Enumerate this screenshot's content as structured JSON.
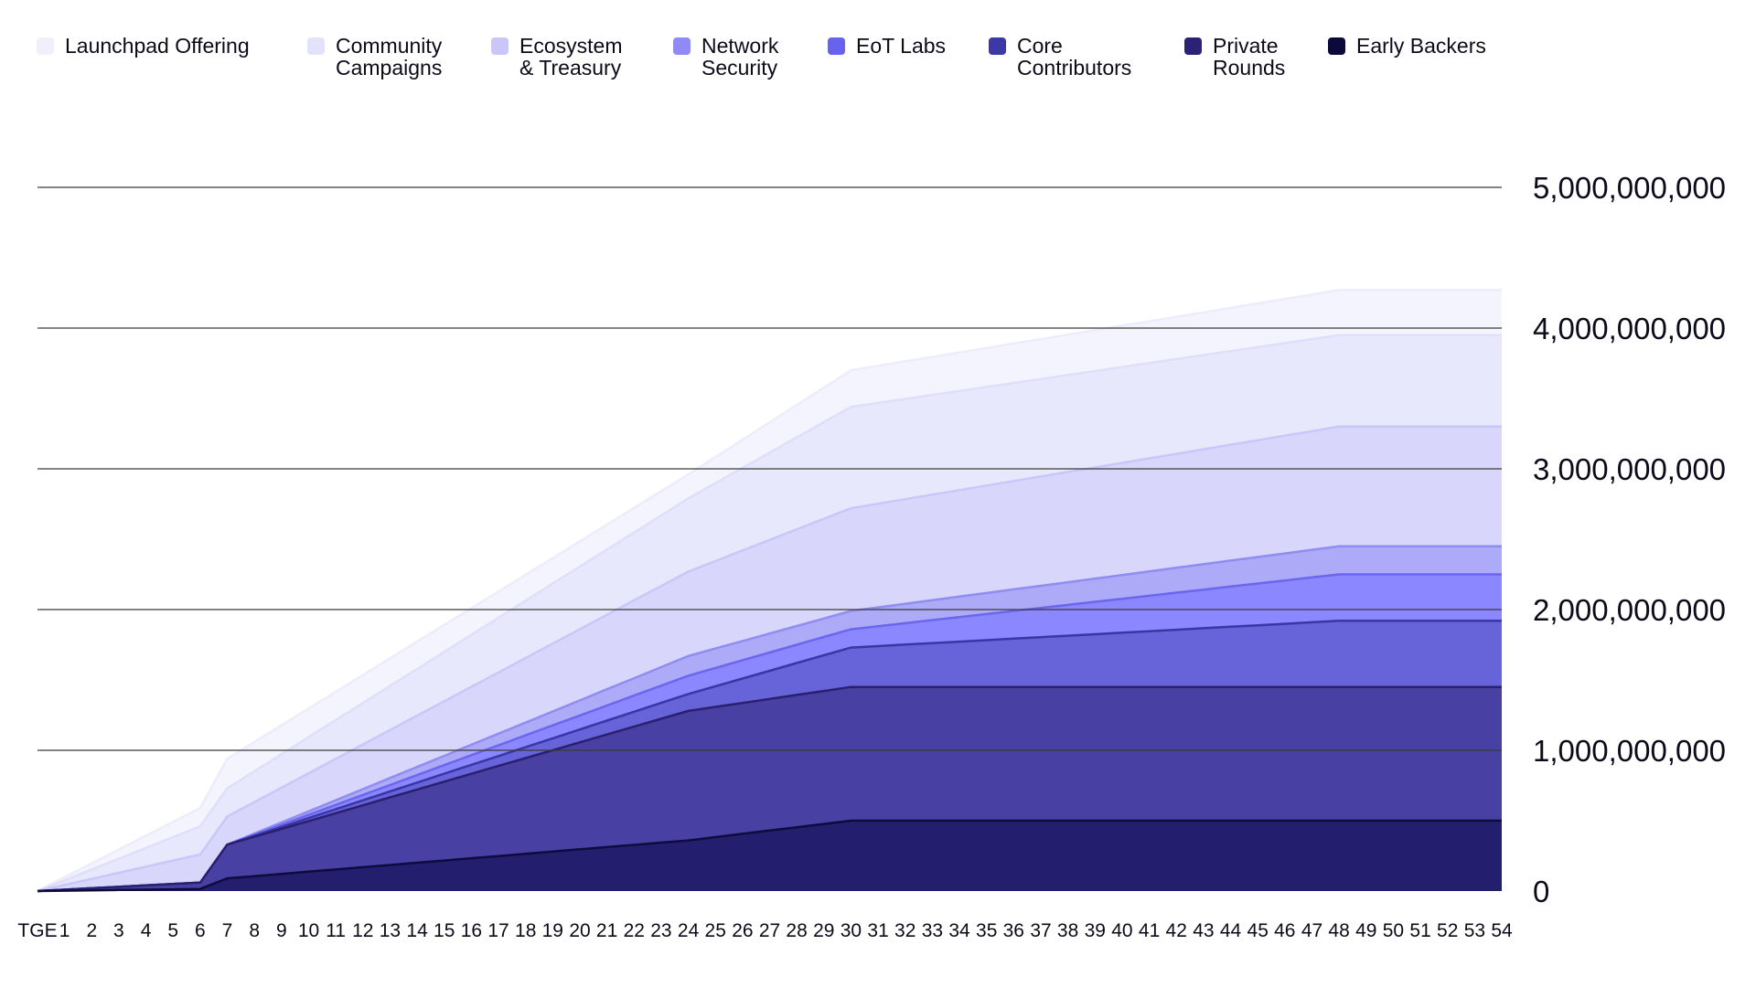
{
  "chart_data": {
    "type": "area",
    "stacked": true,
    "x": [
      "TGE",
      "1",
      "2",
      "3",
      "4",
      "5",
      "6",
      "7",
      "8",
      "9",
      "10",
      "11",
      "12",
      "13",
      "14",
      "15",
      "16",
      "17",
      "18",
      "19",
      "20",
      "21",
      "22",
      "23",
      "24",
      "25",
      "26",
      "27",
      "28",
      "29",
      "30",
      "31",
      "32",
      "33",
      "34",
      "35",
      "36",
      "37",
      "38",
      "39",
      "40",
      "41",
      "42",
      "43",
      "44",
      "45",
      "46",
      "47",
      "48",
      "49",
      "50",
      "51",
      "52",
      "53",
      "54"
    ],
    "ylim": [
      0,
      5000000000
    ],
    "yticks": [
      "0",
      "1,000,000,000",
      "2,000,000,000",
      "3,000,000,000",
      "4,000,000,000",
      "5,000,000,000"
    ],
    "grid": true,
    "legend_position": "top",
    "cumulative_totals": [
      {
        "name": "Early Backers",
        "color": "#0e0b3d",
        "fill": "#231f6e",
        "points": [
          [
            0,
            0
          ],
          [
            6,
            15000000
          ],
          [
            7,
            90000000
          ],
          [
            24,
            360000000
          ],
          [
            30,
            500000000
          ],
          [
            54,
            500000000
          ]
        ]
      },
      {
        "name": "Private\nRounds",
        "color": "#2a2070",
        "fill": "#4840a3",
        "points": [
          [
            0,
            0
          ],
          [
            6,
            60000000
          ],
          [
            7,
            330000000
          ],
          [
            24,
            1280000000
          ],
          [
            30,
            1450000000
          ],
          [
            54,
            1450000000
          ]
        ]
      },
      {
        "name": "Core\nContributors",
        "color": "#3a36a6",
        "fill": "#6763d8",
        "points": [
          [
            0,
            0
          ],
          [
            6,
            60000000
          ],
          [
            7,
            330000000
          ],
          [
            24,
            1400000000
          ],
          [
            30,
            1730000000
          ],
          [
            48,
            1920000000
          ],
          [
            54,
            1920000000
          ]
        ]
      },
      {
        "name": "EoT Labs",
        "color": "#6b66f0",
        "fill": "#8b87ff",
        "points": [
          [
            0,
            0
          ],
          [
            6,
            60000000
          ],
          [
            7,
            330000000
          ],
          [
            24,
            1530000000
          ],
          [
            30,
            1860000000
          ],
          [
            48,
            2250000000
          ],
          [
            54,
            2250000000
          ]
        ]
      },
      {
        "name": "Network\nSecurity",
        "color": "#8f8cf2",
        "fill": "#adabf7",
        "points": [
          [
            0,
            0
          ],
          [
            6,
            60000000
          ],
          [
            7,
            330000000
          ],
          [
            24,
            1670000000
          ],
          [
            30,
            1990000000
          ],
          [
            48,
            2450000000
          ],
          [
            54,
            2450000000
          ]
        ]
      },
      {
        "name": "Ecosystem\n& Treasury",
        "color": "#c9c7fa",
        "fill": "#d8d7fb",
        "points": [
          [
            0,
            0
          ],
          [
            6,
            260000000
          ],
          [
            7,
            530000000
          ],
          [
            24,
            2270000000
          ],
          [
            30,
            2720000000
          ],
          [
            48,
            3300000000
          ],
          [
            54,
            3300000000
          ]
        ]
      },
      {
        "name": "Community\nCampaigns",
        "color": "#dfdefb",
        "fill": "#e8e8fc",
        "points": [
          [
            0,
            0
          ],
          [
            6,
            460000000
          ],
          [
            7,
            730000000
          ],
          [
            24,
            2790000000
          ],
          [
            30,
            3440000000
          ],
          [
            48,
            3950000000
          ],
          [
            54,
            3950000000
          ]
        ]
      },
      {
        "name": "Launchpad Offering",
        "color": "#ececfd",
        "fill": "#f4f4fe",
        "points": [
          [
            0,
            0
          ],
          [
            6,
            590000000
          ],
          [
            7,
            940000000
          ],
          [
            24,
            2960000000
          ],
          [
            30,
            3700000000
          ],
          [
            48,
            4270000000
          ],
          [
            54,
            4270000000
          ]
        ]
      }
    ]
  },
  "legend": [
    {
      "label": "Launchpad Offering",
      "color": "#f0f0fd"
    },
    {
      "label": "Community\nCampaigns",
      "color": "#e3e2fb"
    },
    {
      "label": "Ecosystem\n& Treasury",
      "color": "#c9c7f9"
    },
    {
      "label": "Network\nSecurity",
      "color": "#8f8af4"
    },
    {
      "label": "EoT Labs",
      "color": "#6763ee"
    },
    {
      "label": "Core\nContributors",
      "color": "#3d38a8"
    },
    {
      "label": "Private\nRounds",
      "color": "#2b2175"
    },
    {
      "label": "Early Backers",
      "color": "#0c0a3a"
    }
  ]
}
